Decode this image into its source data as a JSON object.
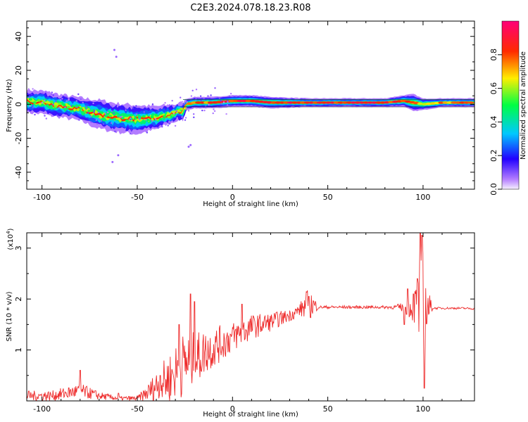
{
  "title": "C2E3.2024.078.18.23.R08",
  "colors": {
    "trace": "#ee2a2a",
    "frame": "#000000",
    "background": "#ffffff"
  },
  "chart_data": [
    {
      "type": "heatmap",
      "title": "C2E3.2024.078.18.23.R08",
      "xlabel": "Height of straight line (km)",
      "ylabel": "Frequency (Hz)",
      "xlim": [
        -108,
        127
      ],
      "ylim": [
        -50,
        49
      ],
      "xticks": [
        -100,
        -50,
        0,
        50,
        100
      ],
      "xtick_labels": [
        "-100",
        "-50",
        "0",
        "50",
        "100"
      ],
      "yticks": [
        -40,
        -20,
        0,
        20,
        40
      ],
      "ytick_labels": [
        "-40",
        "-20",
        "0",
        "20",
        "40"
      ],
      "colorbar": {
        "label": "Normalized spectral amplitude",
        "range": [
          0,
          1
        ],
        "ticks": [
          0,
          0.2,
          0.4,
          0.6,
          0.8
        ],
        "tick_labels": [
          "0.0",
          "0.2",
          "0.4",
          "0.6",
          "0.8"
        ]
      },
      "ridge": {
        "x": [
          -108,
          -100,
          -90,
          -80,
          -70,
          -60,
          -50,
          -40,
          -30,
          -26,
          -24,
          -20,
          -10,
          0,
          10,
          20,
          40,
          60,
          80,
          90,
          95,
          100,
          110,
          127
        ],
        "freq": [
          2,
          1,
          -1,
          -3,
          -6,
          -8,
          -9,
          -8,
          -5,
          -4,
          0,
          1,
          1,
          2,
          2,
          1,
          1,
          1,
          1,
          2,
          1,
          0,
          1,
          1
        ],
        "width": [
          4,
          4,
          4,
          4,
          5,
          5,
          5,
          4,
          3,
          3,
          2,
          2,
          2,
          2,
          2,
          2,
          1.5,
          1.5,
          1.5,
          2,
          3,
          2,
          1.5,
          1.5
        ],
        "amplitude": [
          0.5,
          0.55,
          0.55,
          0.55,
          0.55,
          0.5,
          0.5,
          0.5,
          0.6,
          0.6,
          0.7,
          0.8,
          0.85,
          0.9,
          0.9,
          0.9,
          0.9,
          0.9,
          0.9,
          0.85,
          0.8,
          0.7,
          0.8,
          0.8
        ]
      },
      "scatter_specks": {
        "x": [
          -62,
          -61,
          -63,
          -60,
          -22,
          -23
        ],
        "freq": [
          32,
          28,
          -34,
          -30,
          -24,
          -25
        ]
      }
    },
    {
      "type": "line",
      "xlabel": "Height of straight line (km)",
      "ylabel": "SNR (10 * v/v)",
      "scale_label": "(x10",
      "scale_exponent": "4",
      "scale_suffix": ")",
      "xlim": [
        -108,
        127
      ],
      "ylim": [
        0,
        3.3
      ],
      "xticks": [
        -100,
        -50,
        0,
        50,
        100
      ],
      "xtick_labels": [
        "-100",
        "-50",
        "0",
        "50",
        "100"
      ],
      "yticks": [
        1,
        2,
        3
      ],
      "ytick_labels": [
        "1",
        "2",
        "3"
      ],
      "envelope": {
        "x": [
          -108,
          -95,
          -80,
          -70,
          -60,
          -50,
          -45,
          -40,
          -35,
          -30,
          -25,
          -20,
          -15,
          -10,
          -5,
          0,
          5,
          10,
          20,
          30,
          35,
          38,
          40,
          42,
          45,
          50,
          60,
          70,
          80,
          85,
          90,
          95,
          98,
          100,
          102,
          105,
          110,
          120,
          127
        ],
        "mean": [
          0.1,
          0.1,
          0.2,
          0.1,
          0.05,
          0.05,
          0.15,
          0.3,
          0.4,
          0.55,
          0.75,
          0.8,
          0.95,
          1.05,
          1.15,
          1.25,
          1.35,
          1.45,
          1.55,
          1.68,
          1.78,
          1.85,
          1.9,
          1.88,
          1.84,
          1.84,
          1.84,
          1.84,
          1.84,
          1.84,
          1.84,
          1.84,
          1.84,
          1.84,
          1.84,
          1.82,
          1.82,
          1.82,
          1.81
        ],
        "spread": [
          0.1,
          0.1,
          0.15,
          0.08,
          0.04,
          0.05,
          0.15,
          0.3,
          0.45,
          0.55,
          0.65,
          0.55,
          0.45,
          0.4,
          0.35,
          0.3,
          0.28,
          0.25,
          0.18,
          0.12,
          0.12,
          0.25,
          0.35,
          0.25,
          0.03,
          0.03,
          0.03,
          0.03,
          0.03,
          0.04,
          0.1,
          0.3,
          0.8,
          1.2,
          0.5,
          0.02,
          0.02,
          0.02,
          0.02
        ]
      },
      "spikes": {
        "x": [
          -80,
          -60,
          -38,
          -28,
          -22,
          -20,
          5,
          40,
          90,
          92,
          95,
          97,
          98.5,
          99.5,
          100.5
        ],
        "y": [
          0.6,
          0.15,
          0.5,
          1.5,
          2.1,
          1.95,
          1.9,
          2.05,
          1.5,
          2.2,
          2.1,
          2.4,
          3.3,
          3.25,
          0.25
        ]
      }
    }
  ]
}
